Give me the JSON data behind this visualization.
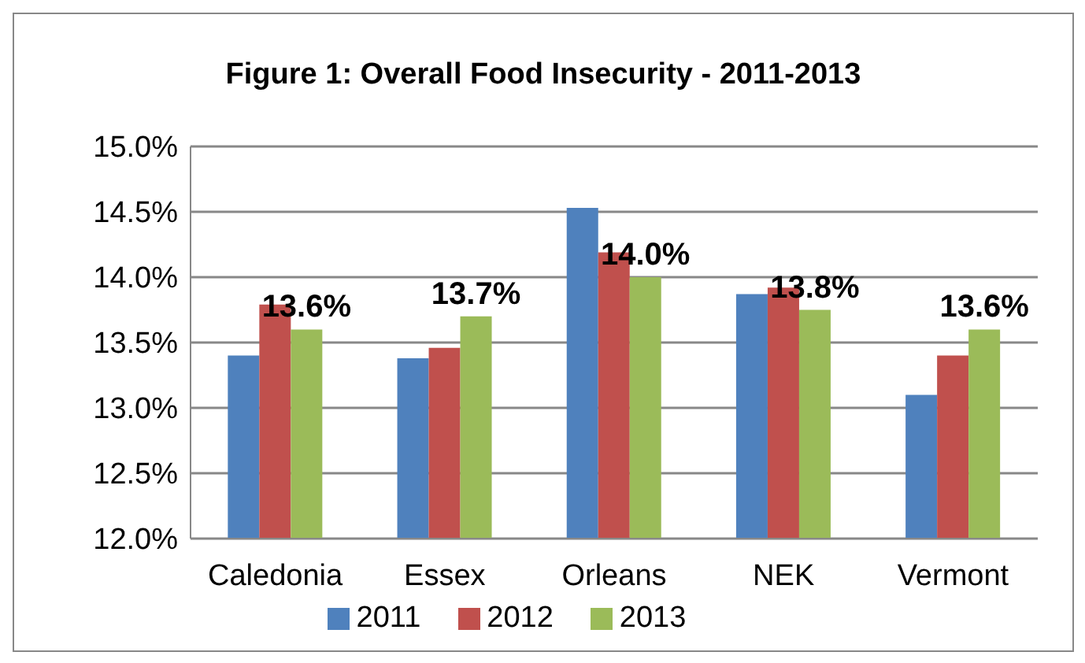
{
  "chart_data": {
    "type": "bar",
    "title": "Figure 1: Overall Food Insecurity - 2011-2013",
    "categories": [
      "Caledonia",
      "Essex",
      "Orleans",
      "NEK",
      "Vermont"
    ],
    "series": [
      {
        "name": "2011",
        "color": "#4f81bd",
        "values": [
          13.4,
          13.38,
          14.53,
          13.87,
          13.1
        ]
      },
      {
        "name": "2012",
        "color": "#c0504d",
        "values": [
          13.79,
          13.46,
          14.19,
          13.92,
          13.4
        ]
      },
      {
        "name": "2013",
        "color": "#9bbb59",
        "values": [
          13.6,
          13.7,
          14.0,
          13.75,
          13.6
        ],
        "value_labels": [
          "13.6%",
          "13.7%",
          "14.0%",
          "13.8%",
          "13.6%"
        ]
      }
    ],
    "ylim": [
      12.0,
      15.0
    ],
    "yticks": [
      {
        "value": 12.0,
        "label": "12.0%"
      },
      {
        "value": 12.5,
        "label": "12.5%"
      },
      {
        "value": 13.0,
        "label": "13.0%"
      },
      {
        "value": 13.5,
        "label": "13.5%"
      },
      {
        "value": 14.0,
        "label": "14.0%"
      },
      {
        "value": 14.5,
        "label": "14.5%"
      },
      {
        "value": 15.0,
        "label": "15.0%"
      }
    ],
    "grid": "y",
    "legend": "bottom"
  }
}
